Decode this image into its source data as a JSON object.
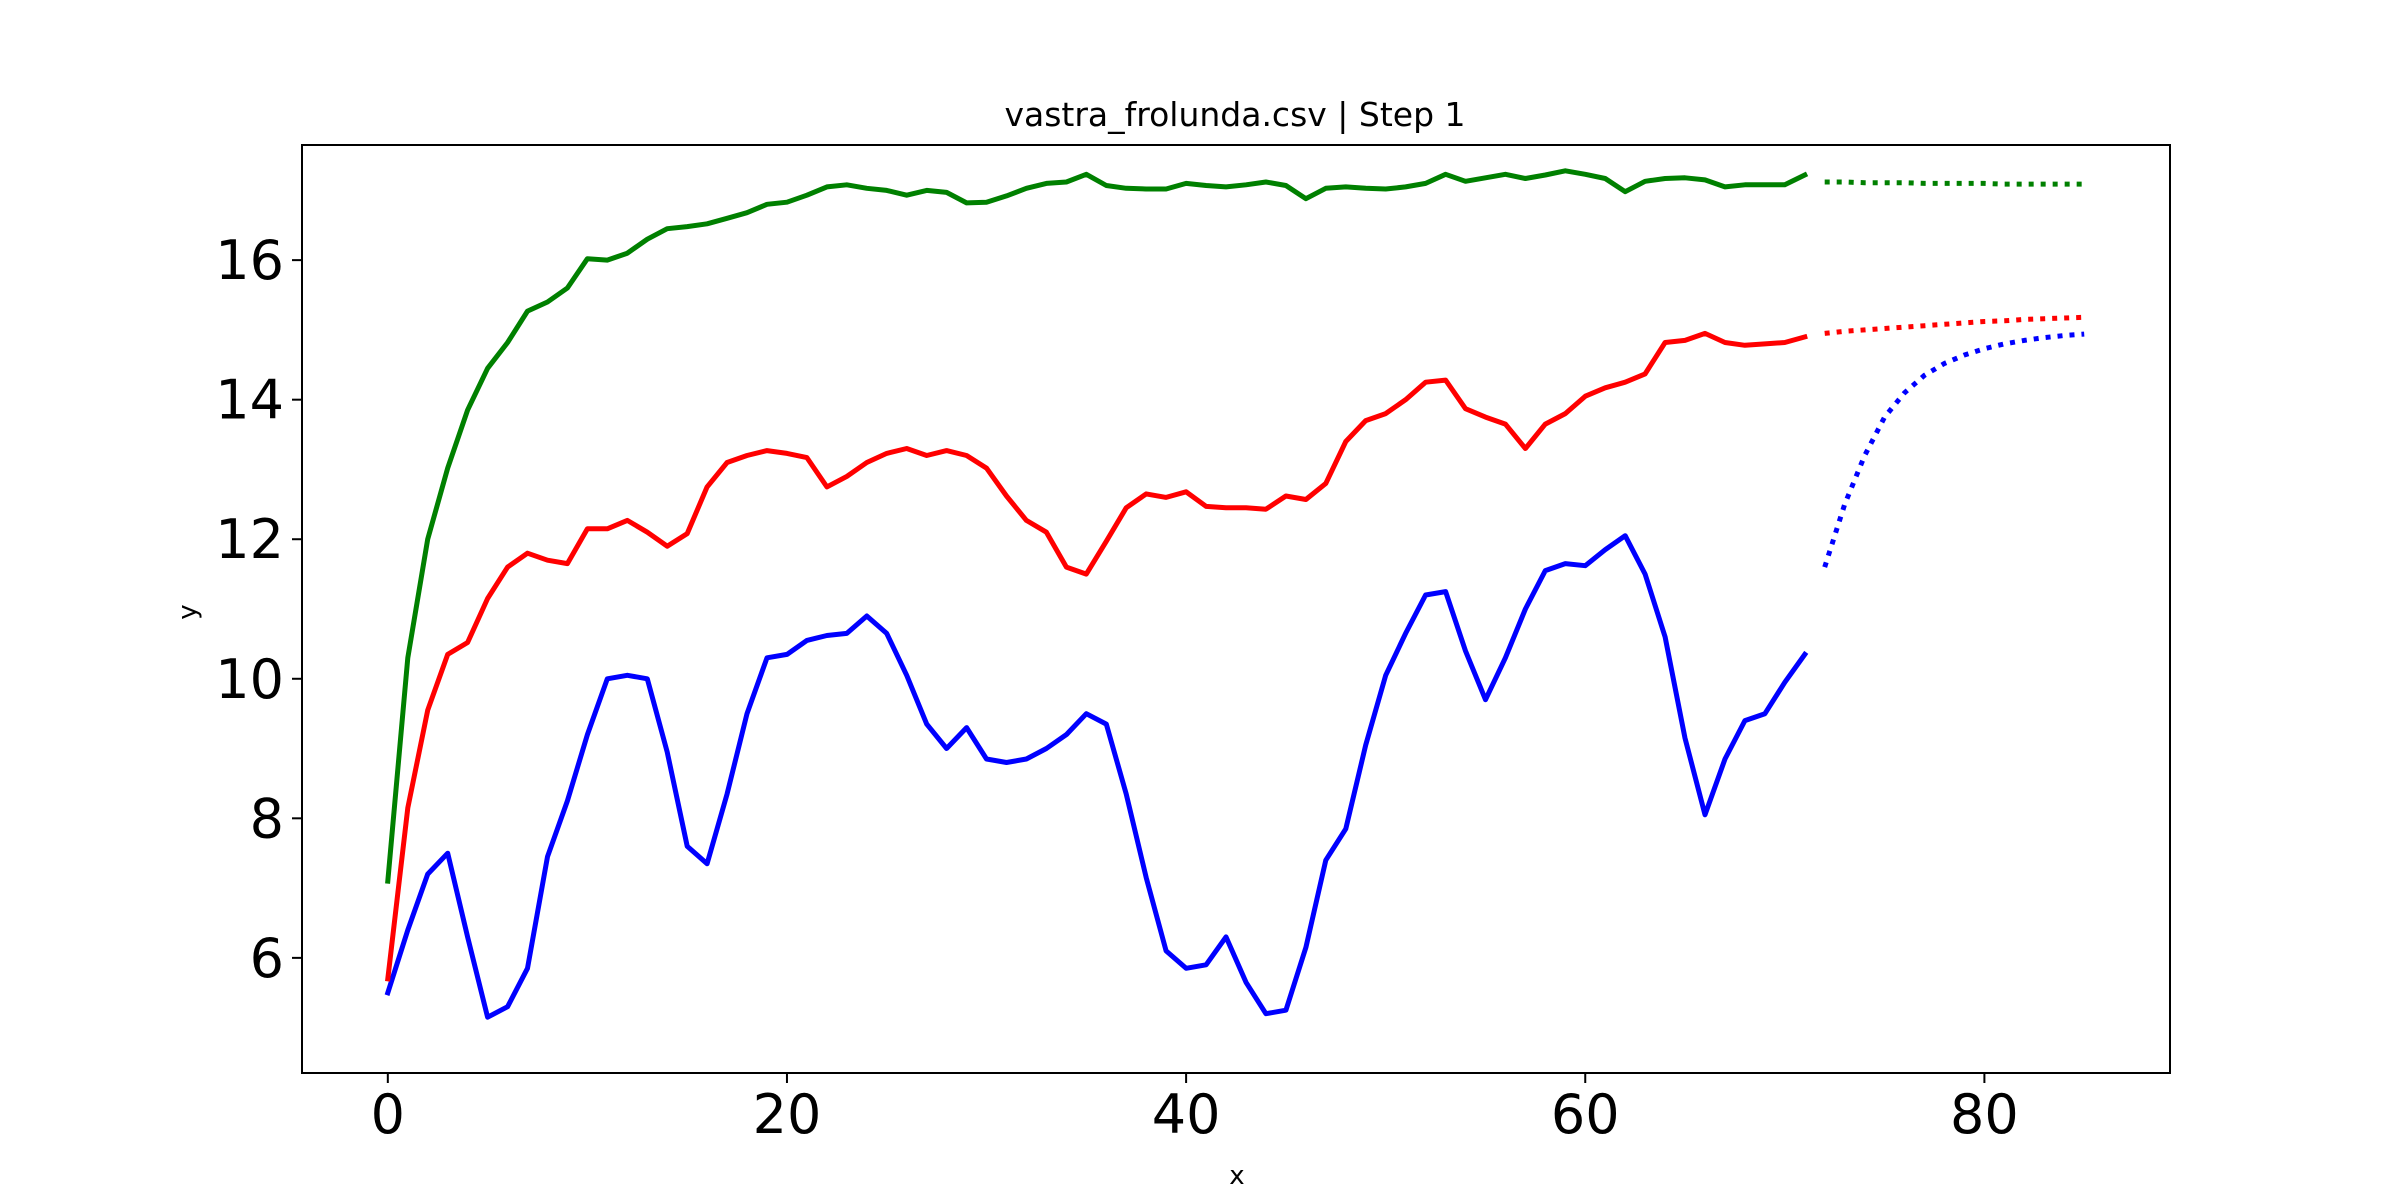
{
  "chart_data": {
    "type": "line",
    "title": "vastra_frolunda.csv | Step 1",
    "xlabel": "x",
    "ylabel": "y",
    "xlim": [
      -4.3,
      89.3
    ],
    "ylim": [
      4.35,
      17.65
    ],
    "xticks": [
      0,
      20,
      40,
      60,
      80
    ],
    "yticks": [
      6,
      8,
      10,
      12,
      14,
      16
    ],
    "grid": false,
    "legend": "none",
    "series": [
      {
        "color": "#0000ff",
        "style": "solid",
        "x_start": 0,
        "values": [
          5.5,
          6.4,
          7.2,
          7.5,
          6.3,
          5.15,
          5.3,
          5.85,
          7.45,
          8.25,
          9.2,
          10.0,
          10.05,
          10.0,
          8.95,
          7.6,
          7.35,
          8.35,
          9.5,
          10.3,
          10.35,
          10.55,
          10.62,
          10.65,
          10.9,
          10.65,
          10.05,
          9.35,
          9.0,
          9.3,
          8.85,
          8.8,
          8.85,
          9.0,
          9.2,
          9.5,
          9.35,
          8.35,
          7.15,
          6.1,
          5.85,
          5.9,
          6.3,
          5.65,
          5.2,
          5.25,
          6.15,
          7.4,
          7.85,
          9.05,
          10.05,
          10.65,
          11.2,
          11.25,
          10.4,
          9.7,
          10.3,
          11.0,
          11.55,
          11.65,
          11.62,
          11.85,
          12.05,
          11.5,
          10.6,
          9.15,
          8.05,
          8.85,
          9.4,
          9.5,
          9.95,
          10.35
        ]
      },
      {
        "color": "#ff0000",
        "style": "solid",
        "x_start": 0,
        "values": [
          5.7,
          8.15,
          9.55,
          10.35,
          10.52,
          11.15,
          11.6,
          11.8,
          11.7,
          11.65,
          12.15,
          12.15,
          12.27,
          12.1,
          11.9,
          12.08,
          12.75,
          13.1,
          13.2,
          13.27,
          13.23,
          13.17,
          12.75,
          12.9,
          13.1,
          13.23,
          13.3,
          13.2,
          13.27,
          13.2,
          13.02,
          12.62,
          12.27,
          12.1,
          11.6,
          11.5,
          11.97,
          12.45,
          12.65,
          12.6,
          12.68,
          12.47,
          12.45,
          12.45,
          12.43,
          12.62,
          12.57,
          12.8,
          13.4,
          13.7,
          13.8,
          14.0,
          14.25,
          14.28,
          13.87,
          13.75,
          13.65,
          13.3,
          13.65,
          13.8,
          14.05,
          14.17,
          14.25,
          14.37,
          14.82,
          14.85,
          14.95,
          14.82,
          14.78,
          14.8,
          14.82,
          14.9
        ]
      },
      {
        "color": "#008000",
        "style": "solid",
        "x_start": 0,
        "values": [
          7.1,
          10.3,
          12.0,
          13.02,
          13.85,
          14.45,
          14.82,
          15.27,
          15.4,
          15.6,
          16.02,
          16.0,
          16.1,
          16.3,
          16.45,
          16.48,
          16.52,
          16.6,
          16.68,
          16.8,
          16.83,
          16.93,
          17.05,
          17.08,
          17.03,
          17.0,
          16.93,
          17.0,
          16.97,
          16.82,
          16.83,
          16.92,
          17.03,
          17.1,
          17.12,
          17.23,
          17.07,
          17.03,
          17.02,
          17.02,
          17.1,
          17.07,
          17.05,
          17.08,
          17.12,
          17.07,
          16.88,
          17.03,
          17.05,
          17.03,
          17.02,
          17.05,
          17.1,
          17.23,
          17.13,
          17.18,
          17.23,
          17.17,
          17.22,
          17.28,
          17.23,
          17.17,
          16.98,
          17.13,
          17.17,
          17.18,
          17.15,
          17.05,
          17.08,
          17.08,
          17.08,
          17.22
        ]
      },
      {
        "color": "#0000ff",
        "style": "dotted",
        "x": [
          72,
          73,
          74,
          75,
          76,
          77,
          78,
          79,
          80,
          81,
          82,
          83,
          84,
          85
        ],
        "values": [
          11.6,
          12.5,
          13.2,
          13.75,
          14.1,
          14.35,
          14.52,
          14.64,
          14.73,
          14.8,
          14.85,
          14.89,
          14.92,
          14.94
        ]
      },
      {
        "color": "#ff0000",
        "style": "dotted",
        "x": [
          72,
          73,
          74,
          75,
          76,
          77,
          78,
          79,
          80,
          81,
          82,
          83,
          84,
          85
        ],
        "values": [
          14.95,
          14.98,
          15.0,
          15.02,
          15.04,
          15.06,
          15.08,
          15.1,
          15.12,
          15.13,
          15.15,
          15.16,
          15.17,
          15.18
        ]
      },
      {
        "color": "#008000",
        "style": "dotted",
        "x": [
          72,
          73,
          74,
          75,
          76,
          77,
          78,
          79,
          80,
          81,
          82,
          83,
          84,
          85
        ],
        "values": [
          17.12,
          17.12,
          17.11,
          17.11,
          17.11,
          17.1,
          17.1,
          17.1,
          17.1,
          17.09,
          17.09,
          17.09,
          17.09,
          17.09
        ]
      }
    ]
  }
}
